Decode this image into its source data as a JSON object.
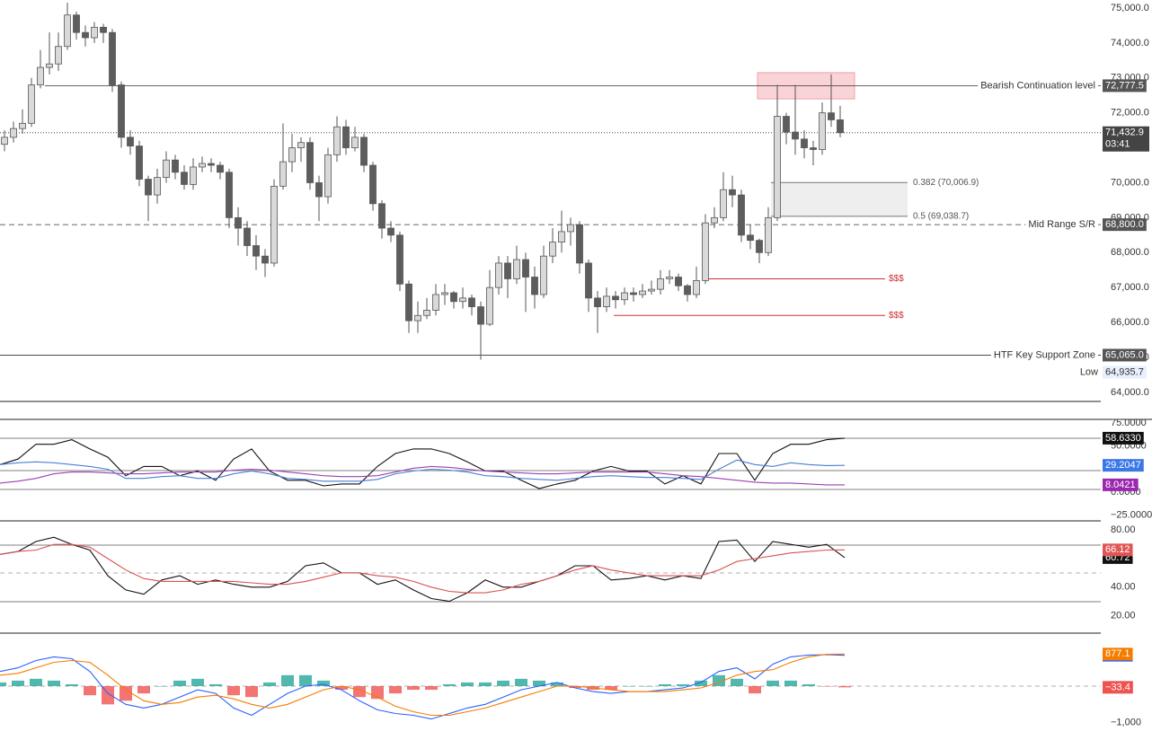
{
  "chart_data": [
    {
      "type": "candlestick",
      "ylim": [
        63740,
        75230
      ],
      "yticks": [
        {
          "value": 64000,
          "label": "64,000.0"
        },
        {
          "value": 65000,
          "label": "65,000.0"
        },
        {
          "value": 66000,
          "label": "66,000.0"
        },
        {
          "value": 67000,
          "label": "67,000.0"
        },
        {
          "value": 68000,
          "label": "68,000.0"
        },
        {
          "value": 69000,
          "label": "69,000.0"
        },
        {
          "value": 70000,
          "label": "70,000.0"
        },
        {
          "value": 71000,
          "label": "71,000.0"
        },
        {
          "value": 72000,
          "label": "72,000.0"
        },
        {
          "value": 73000,
          "label": "73,000.0"
        },
        {
          "value": 74000,
          "label": "74,000.0"
        },
        {
          "value": 75000,
          "label": "75,000.0"
        }
      ],
      "up_color": "#d9d9d9",
      "down_color": "#5d5d5d",
      "wick_color": "#555555",
      "open": [
        71100,
        71300,
        71550,
        71700,
        72800,
        73300,
        73400,
        73900,
        74800,
        74300,
        74150,
        74450,
        74300,
        72800,
        71300,
        71050,
        70100,
        69650,
        70150,
        70650,
        70300,
        69950,
        70450,
        70550,
        70500,
        70300,
        69000,
        68700,
        68200,
        67900,
        67700,
        69900,
        70600,
        71000,
        71150,
        70000,
        69600,
        70800,
        71600,
        71000,
        71300,
        70500,
        69400,
        68700,
        68500,
        67100,
        66050,
        66200,
        66350,
        66800,
        66850,
        66600,
        66700,
        66450,
        65950,
        67000,
        67700,
        67250,
        67800,
        67300,
        66800,
        67900,
        68300,
        68600,
        68800,
        67700,
        66700,
        66450,
        66750,
        66650,
        66850,
        66800,
        66900,
        66950,
        67250,
        67300,
        67050,
        66800,
        67200,
        68850,
        69000,
        69800,
        69650,
        68500,
        68350,
        68000,
        69000,
        71900,
        71450,
        71250,
        71000,
        70950,
        72000,
        71800
      ],
      "high": [
        71500,
        71750,
        72100,
        73000,
        73800,
        74300,
        74300,
        75150,
        74900,
        74500,
        74600,
        74550,
        74400,
        72900,
        71500,
        71200,
        70200,
        70400,
        70900,
        70800,
        70500,
        70700,
        70750,
        70700,
        70600,
        70400,
        69300,
        68900,
        68500,
        68100,
        70100,
        71700,
        71400,
        71300,
        71300,
        70200,
        71000,
        71900,
        71800,
        71600,
        71400,
        70600,
        69500,
        68900,
        68600,
        67200,
        66600,
        66700,
        67100,
        67100,
        66900,
        67000,
        66800,
        66600,
        67500,
        67900,
        67900,
        68200,
        68000,
        67600,
        68200,
        68700,
        69200,
        69000,
        68900,
        67800,
        66900,
        67000,
        66900,
        67000,
        67000,
        67100,
        67200,
        67500,
        67500,
        67400,
        67100,
        67600,
        69100,
        69300,
        70300,
        70200,
        69800,
        68800,
        68400,
        69300,
        72800,
        72000,
        72800,
        71500,
        71200,
        72300,
        73100,
        72200
      ],
      "low": [
        70900,
        71150,
        71400,
        71600,
        72700,
        73100,
        73200,
        73800,
        74100,
        73900,
        74000,
        74000,
        72600,
        71000,
        70800,
        69900,
        68900,
        69400,
        70000,
        70100,
        69800,
        69800,
        70300,
        70300,
        70100,
        68700,
        68200,
        67900,
        67500,
        67300,
        67600,
        69800,
        70300,
        70600,
        69800,
        68900,
        69400,
        70600,
        70800,
        70900,
        70300,
        69200,
        68400,
        68300,
        66900,
        65700,
        65700,
        66100,
        66200,
        66500,
        66400,
        66400,
        66200,
        64935.7,
        65900,
        66800,
        66700,
        67100,
        66300,
        66400,
        66700,
        67700,
        68000,
        68200,
        67400,
        66300,
        65700,
        66300,
        66400,
        66500,
        66600,
        66700,
        66800,
        66800,
        67100,
        66900,
        66600,
        66700,
        67100,
        68700,
        68900,
        69300,
        68300,
        68100,
        67700,
        67900,
        68900,
        71100,
        70800,
        70700,
        70500,
        70800,
        71600,
        71300
      ],
      "close": [
        71300,
        71550,
        71700,
        72800,
        73300,
        73400,
        73900,
        74800,
        74300,
        74150,
        74450,
        74300,
        72800,
        71300,
        71050,
        70100,
        69650,
        70150,
        70650,
        70300,
        69950,
        70450,
        70550,
        70500,
        70300,
        69000,
        68700,
        68200,
        67900,
        67700,
        69900,
        70600,
        71000,
        71150,
        70000,
        69600,
        70800,
        71600,
        71000,
        71300,
        70500,
        69400,
        68700,
        68500,
        67100,
        66050,
        66200,
        66350,
        66800,
        66850,
        66600,
        66700,
        66450,
        65950,
        67000,
        67700,
        67250,
        67800,
        67300,
        66800,
        67900,
        68300,
        68600,
        68800,
        67700,
        66700,
        66450,
        66750,
        66650,
        66850,
        66800,
        66900,
        66950,
        67250,
        67300,
        67050,
        66800,
        67200,
        68850,
        69000,
        69800,
        69650,
        68500,
        68350,
        68000,
        69000,
        71900,
        71450,
        71250,
        71000,
        70950,
        72000,
        71800,
        71432.9
      ],
      "levels": [
        {
          "name": "Bearish Continuation level",
          "value": 72777.5,
          "label": "72,777.5",
          "style": "solid"
        },
        {
          "name": "Mid Range S/R",
          "value": 68800,
          "label": "68,800.0",
          "style": "dashed"
        },
        {
          "name": "HTF Key Support Zone",
          "value": 65065,
          "label": "65,065.0",
          "style": "solid"
        }
      ],
      "fib_levels": [
        {
          "value": 70006.9,
          "label": "0.382 (70,006.9)"
        },
        {
          "value": 69038.7,
          "label": "0.5 (69,038.7)"
        }
      ],
      "liquidity": [
        {
          "value": 67250,
          "label": "$$$"
        },
        {
          "value": 66200,
          "label": "$$$"
        }
      ],
      "zone": {
        "from": 72400,
        "to": 73150,
        "color": "#f9d3d6"
      },
      "last_price": {
        "value": 71432.9,
        "label": "71,432.9"
      },
      "countdown": "03:41",
      "low_marker": {
        "name": "Low",
        "value": 64935.7,
        "label": "64,935.7"
      }
    },
    {
      "type": "line",
      "ylim": [
        -31,
        79
      ],
      "yticks": [
        {
          "value": 75,
          "label": "75.0000"
        },
        {
          "value": 50,
          "label": "50.0000"
        },
        {
          "value": 0,
          "label": "0.0000"
        },
        {
          "value": -25,
          "label": "−25.0000"
        }
      ],
      "series": [
        {
          "color": "#111111",
          "label_color": "#111111",
          "value_label": "58.6330",
          "values": [
            30,
            36,
            52,
            52,
            57,
            47,
            38,
            18,
            28,
            28,
            18,
            23,
            13,
            36,
            47,
            23,
            13,
            13,
            7,
            9,
            9,
            28,
            42,
            47,
            47,
            42,
            33,
            23,
            23,
            13,
            4,
            9,
            13,
            23,
            28,
            23,
            23,
            9,
            18,
            9,
            42,
            42,
            13,
            42,
            52,
            52,
            57,
            58.633
          ]
        },
        {
          "color": "#4a7fd4",
          "label_color": "#3b78e7",
          "values": [
            30,
            32,
            33,
            32,
            30,
            28,
            25,
            15,
            15,
            17,
            18,
            15,
            15,
            20,
            23,
            20,
            15,
            14,
            12,
            12,
            12,
            14,
            20,
            23,
            25,
            24,
            22,
            18,
            17,
            15,
            14,
            13,
            15,
            17,
            18,
            17,
            16,
            16,
            15,
            14,
            25,
            35,
            30,
            28,
            32,
            30,
            29,
            29.2047
          ]
        },
        {
          "color": "#9c3fb5",
          "label_color": "#9c27b0",
          "values": [
            10,
            12,
            15,
            20,
            22,
            22,
            21,
            20,
            20,
            21,
            22,
            22,
            22,
            24,
            25,
            24,
            22,
            20,
            18,
            17,
            17,
            18,
            22,
            26,
            28,
            27,
            25,
            23,
            22,
            21,
            20,
            20,
            21,
            22,
            22,
            22,
            22,
            20,
            18,
            17,
            15,
            13,
            11,
            10,
            10,
            9,
            8,
            8.0421
          ]
        }
      ]
    },
    {
      "type": "line",
      "ylim": [
        7.7,
        86.5
      ],
      "yticks": [
        {
          "value": 80,
          "label": "80.00"
        },
        {
          "value": 40,
          "label": "40.00"
        },
        {
          "value": 20,
          "label": "20.00"
        }
      ],
      "series": [
        {
          "color": "#111111",
          "label_color": "#111111",
          "values": [
            63,
            65,
            72,
            75,
            70,
            66,
            48,
            38,
            35,
            45,
            48,
            42,
            45,
            42,
            40,
            40,
            44,
            55,
            57,
            50,
            50,
            42,
            45,
            38,
            32,
            30,
            36,
            45,
            40,
            40,
            44,
            48,
            55,
            55,
            45,
            46,
            48,
            45,
            48,
            46,
            72,
            73,
            58,
            72,
            70,
            68,
            70,
            60.72
          ]
        },
        {
          "color": "#d9534f",
          "label_color": "#e05656",
          "values": [
            63,
            65,
            66,
            70,
            70,
            68,
            60,
            52,
            46,
            44,
            44,
            44,
            44,
            44,
            43,
            42,
            42,
            44,
            47,
            50,
            50,
            48,
            47,
            44,
            40,
            37,
            36,
            36,
            38,
            42,
            44,
            48,
            52,
            55,
            52,
            50,
            48,
            48,
            48,
            48,
            52,
            58,
            60,
            62,
            64,
            65,
            66,
            66.12
          ]
        }
      ]
    },
    {
      "type": "line",
      "ylim": [
        -1475,
        1450
      ],
      "yticks": [
        {
          "value": -1000,
          "label": "−1,000"
        }
      ],
      "series": [
        {
          "style": "histogram",
          "color": "#26a69a",
          "negative_color": "#ef5350",
          "label_color": "#ef5350",
          "value_label": "−33.4",
          "values": [
            100,
            150,
            200,
            150,
            50,
            -250,
            -500,
            -400,
            -200,
            0,
            150,
            200,
            50,
            -250,
            -300,
            100,
            300,
            300,
            150,
            -100,
            -300,
            -350,
            -200,
            -100,
            -100,
            50,
            100,
            100,
            150,
            200,
            150,
            100,
            -50,
            -100,
            -100,
            0,
            0,
            50,
            50,
            150,
            300,
            200,
            -200,
            150,
            150,
            50,
            -10,
            -33.4
          ]
        },
        {
          "color": "#2962ff",
          "label_color": "#2962ff",
          "values": [
            400,
            500,
            700,
            800,
            750,
            400,
            -200,
            -500,
            -600,
            -500,
            -300,
            -100,
            -200,
            -600,
            -800,
            -500,
            -200,
            0,
            50,
            -100,
            -400,
            -650,
            -750,
            -800,
            -900,
            -750,
            -600,
            -500,
            -300,
            -100,
            0,
            100,
            -50,
            -150,
            -200,
            -150,
            -150,
            -100,
            -50,
            100,
            400,
            500,
            200,
            600,
            800,
            850,
            860,
            843.7
          ]
        },
        {
          "color": "#f57c00",
          "label_color": "#f57c00",
          "values": [
            300,
            350,
            500,
            650,
            700,
            650,
            300,
            -100,
            -400,
            -500,
            -450,
            -300,
            -250,
            -350,
            -500,
            -600,
            -500,
            -300,
            -100,
            0,
            -100,
            -300,
            -550,
            -700,
            -800,
            -800,
            -700,
            -600,
            -450,
            -300,
            -150,
            0,
            0,
            -50,
            -100,
            -150,
            -150,
            -150,
            -100,
            -50,
            100,
            300,
            400,
            450,
            650,
            800,
            870,
            877.1
          ]
        }
      ]
    }
  ]
}
